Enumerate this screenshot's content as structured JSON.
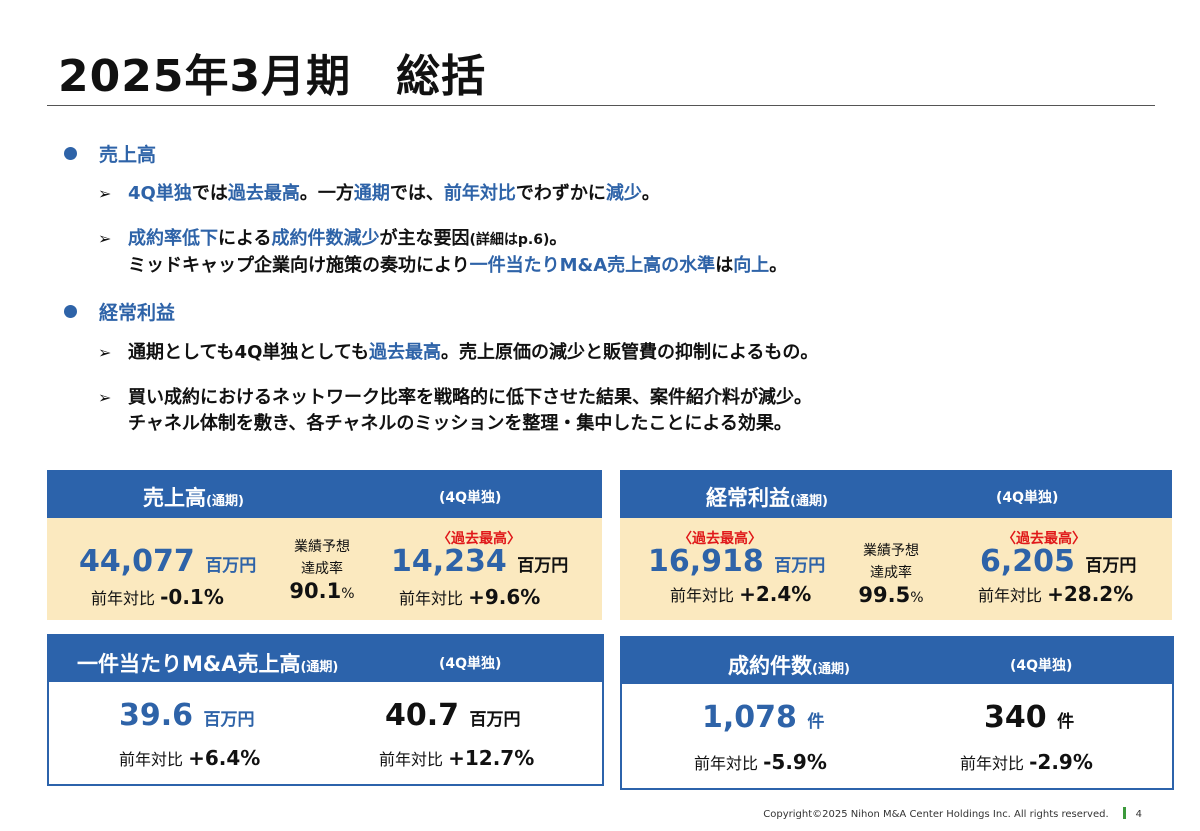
{
  "title": "2025年3月期　総括",
  "sections": {
    "sales": {
      "heading": "売上高",
      "b1": [
        "4Q単独",
        "では",
        "過去最高",
        "。一方",
        "通期",
        "では、",
        "前年対比",
        "でわずかに",
        "減少",
        "。"
      ],
      "b2a": [
        "成約率低下",
        "による",
        "成約件数減少",
        "が主な要因",
        "(詳細はp.6)",
        "。"
      ],
      "b2b": [
        "ミッドキャップ企業向け施策の奏功により",
        "一件当たりM&A売上高の水準",
        "は",
        "向上",
        "。"
      ]
    },
    "profit": {
      "heading": "経常利益",
      "b1": [
        "通期としても4Q単独としても",
        "過去最高",
        "。売上原価の減少と販管費の抑制によるもの。"
      ],
      "b2a": "買い成約におけるネットワーク比率を戦略的に低下させた結果、案件紹介料が減少。",
      "b2b": "チャネル体制を敷き、各チャネルのミッションを整理・集中したことによる効果。"
    }
  },
  "cards": {
    "sales": {
      "title": "売上高",
      "title_sub": "(通期)",
      "sub": "(4Q単独)",
      "full_value": "44,077",
      "full_unit": "百万円",
      "full_yoy_label": "前年対比",
      "full_yoy": "-0.1%",
      "fc_line1": "業績予想",
      "fc_line2": "達成率",
      "fc_value": "90.1",
      "fc_pct": "%",
      "q4_badge": "〈過去最高〉",
      "q4_value": "14,234",
      "q4_unit": "百万円",
      "q4_yoy_label": "前年対比",
      "q4_yoy": "+9.6%"
    },
    "profit": {
      "title": "経常利益",
      "title_sub": "(通期)",
      "sub": "(4Q単独)",
      "full_badge": "〈過去最高〉",
      "full_value": "16,918",
      "full_unit": "百万円",
      "full_yoy_label": "前年対比",
      "full_yoy": "+2.4%",
      "fc_line1": "業績予想",
      "fc_line2": "達成率",
      "fc_value": "99.5",
      "fc_pct": "%",
      "q4_badge": "〈過去最高〉",
      "q4_value": "6,205",
      "q4_unit": "百万円",
      "q4_yoy_label": "前年対比",
      "q4_yoy": "+28.2%"
    },
    "per_deal": {
      "title": "一件当たりM&A売上高",
      "title_sub": "(通期)",
      "sub": "(4Q単独)",
      "full_value": "39.6",
      "full_unit": "百万円",
      "full_yoy_label": "前年対比",
      "full_yoy": "+6.4%",
      "q4_value": "40.7",
      "q4_unit": "百万円",
      "q4_yoy_label": "前年対比",
      "q4_yoy": "+12.7%"
    },
    "deals": {
      "title": "成約件数",
      "title_sub": "(通期)",
      "sub": "(4Q単独)",
      "full_value": "1,078",
      "full_unit": "件",
      "full_yoy_label": "前年対比",
      "full_yoy": "-5.9%",
      "q4_value": "340",
      "q4_unit": "件",
      "q4_yoy_label": "前年対比",
      "q4_yoy": "-2.9%"
    }
  },
  "footer": {
    "copyright": "Copyright©2025 Nihon M&A Center Holdings Inc. All rights reserved.",
    "page": "4"
  },
  "colors": {
    "accent_blue": "#2E63A8",
    "header_blue": "#2C63AB",
    "card_yellow": "#FBE9BF",
    "record_red": "#E0191A"
  }
}
